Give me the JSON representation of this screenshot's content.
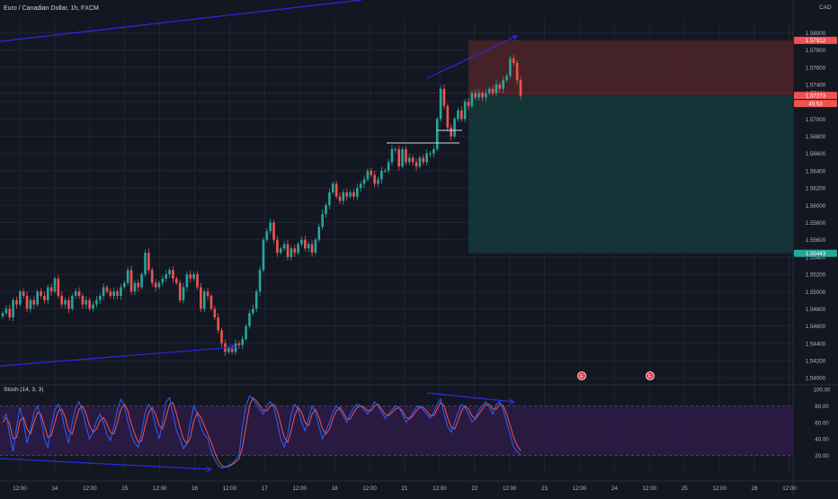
{
  "title": "Euro / Canadian Dollar, 1h, FXCM",
  "currency": "CAD",
  "colors": {
    "background": "#131722",
    "grid": "#1f2433",
    "bull": "#26a69a",
    "bear": "#ef5350",
    "trendline": "#2a2ae6",
    "level_line": "#d1d4dc",
    "stop_zone": "#4a2328",
    "target_zone": "#15363a",
    "stoch_band": "#2a1a45",
    "stoch_k": "#2962ff",
    "stoch_d": "#ef5350",
    "axis_text": "#b2b5be"
  },
  "price_axis": {
    "labels": [
      "1.58000",
      "1.57800",
      "1.57600",
      "1.57400",
      "1.57200",
      "1.57000",
      "1.56800",
      "1.56600",
      "1.56400",
      "1.56200",
      "1.56000",
      "1.55800",
      "1.55600",
      "1.55400",
      "1.55200",
      "1.55000",
      "1.54800",
      "1.54600",
      "1.54400",
      "1.54200",
      "1.54000"
    ]
  },
  "price_badges": {
    "stop": "1.57912",
    "last": "1.57301",
    "current": "1.57273",
    "countdown": "45:53",
    "target": "1.55443"
  },
  "stoch": {
    "label": "Stoch (14, 3, 3)",
    "axis_labels": [
      "100.00",
      "80.00",
      "60.00",
      "40.00",
      "20.00"
    ],
    "upper_band": 80,
    "lower_band": 20
  },
  "time_axis": {
    "labels": [
      "12:00",
      "14",
      "12:00",
      "15",
      "12:00",
      "16",
      "12:00",
      "17",
      "12:00",
      "18",
      "12:00",
      "21",
      "12:00",
      "22",
      "12:00",
      "23",
      "12:00",
      "24",
      "12:00",
      "25",
      "12:00",
      "28",
      "12:00"
    ]
  },
  "events": {
    "icon_label": "E"
  },
  "chart_data": {
    "type": "candlestick",
    "title": "Euro / Canadian Dollar, 1h, FXCM",
    "ylim": [
      1.5395,
      1.5815
    ],
    "y_unit": "CAD",
    "grid": true,
    "x_ticks": [
      "12:00",
      "14",
      "12:00",
      "15",
      "12:00",
      "16",
      "12:00",
      "17",
      "12:00",
      "18",
      "12:00",
      "21",
      "12:00",
      "22",
      "12:00",
      "23",
      "12:00",
      "24",
      "12:00",
      "25",
      "12:00",
      "28",
      "12:00"
    ],
    "close_series": [
      1.5475,
      1.548,
      1.547,
      1.549,
      1.5485,
      1.55,
      1.5495,
      1.548,
      1.549,
      1.5485,
      1.55,
      1.5495,
      1.549,
      1.5505,
      1.55,
      1.5515,
      1.5495,
      1.5485,
      1.549,
      1.548,
      1.5495,
      1.55,
      1.5495,
      1.5485,
      1.549,
      1.548,
      1.5485,
      1.549,
      1.5495,
      1.5505,
      1.55,
      1.5495,
      1.55,
      1.5495,
      1.5505,
      1.551,
      1.5525,
      1.55,
      1.551,
      1.5505,
      1.552,
      1.5545,
      1.5525,
      1.551,
      1.5505,
      1.551,
      1.5515,
      1.552,
      1.5525,
      1.5515,
      1.551,
      1.549,
      1.5505,
      1.552,
      1.5515,
      1.552,
      1.5505,
      1.548,
      1.55,
      1.5495,
      1.548,
      1.547,
      1.5455,
      1.544,
      1.543,
      1.5435,
      1.543,
      1.544,
      1.5438,
      1.5445,
      1.546,
      1.5475,
      1.548,
      1.55,
      1.5525,
      1.556,
      1.557,
      1.558,
      1.556,
      1.5545,
      1.555,
      1.5555,
      1.554,
      1.555,
      1.5545,
      1.5555,
      1.556,
      1.555,
      1.5555,
      1.5545,
      1.556,
      1.5575,
      1.559,
      1.56,
      1.5615,
      1.5625,
      1.561,
      1.5605,
      1.5615,
      1.561,
      1.5615,
      1.561,
      1.562,
      1.5625,
      1.563,
      1.564,
      1.5635,
      1.5625,
      1.563,
      1.564,
      1.564,
      1.565,
      1.5665,
      1.5665,
      1.5645,
      1.5665,
      1.565,
      1.5655,
      1.565,
      1.5645,
      1.5655,
      1.565,
      1.566,
      1.566,
      1.5665,
      1.57,
      1.5735,
      1.5715,
      1.569,
      1.568,
      1.57,
      1.571,
      1.57,
      1.572,
      1.5715,
      1.573,
      1.5725,
      1.573,
      1.5725,
      1.573,
      1.5735,
      1.573,
      1.574,
      1.5735,
      1.5745,
      1.575,
      1.577,
      1.5765,
      1.5745,
      1.5727
    ],
    "levels": [
      {
        "name": "stop",
        "value": 1.57912
      },
      {
        "name": "last",
        "value": 1.57301
      },
      {
        "name": "current",
        "value": 1.57273
      },
      {
        "name": "target",
        "value": 1.55443
      }
    ],
    "stoch_k": [
      65,
      70,
      45,
      25,
      55,
      78,
      60,
      35,
      50,
      72,
      80,
      65,
      40,
      30,
      55,
      75,
      82,
      70,
      50,
      35,
      60,
      78,
      85,
      72,
      55,
      40,
      48,
      62,
      70,
      60,
      45,
      38,
      55,
      75,
      88,
      80,
      60,
      45,
      35,
      30,
      48,
      72,
      82,
      74,
      55,
      40,
      60,
      85,
      90,
      70,
      50,
      40,
      28,
      35,
      60,
      80,
      70,
      55,
      45,
      40,
      25,
      15,
      8,
      5,
      6,
      8,
      10,
      15,
      20,
      55,
      80,
      92,
      88,
      82,
      75,
      70,
      80,
      85,
      78,
      60,
      40,
      30,
      45,
      70,
      82,
      76,
      60,
      50,
      65,
      80,
      72,
      55,
      40,
      50,
      60,
      72,
      80,
      75,
      68,
      60,
      70,
      78,
      82,
      80,
      75,
      70,
      78,
      85,
      80,
      72,
      65,
      70,
      75,
      80,
      78,
      70,
      60,
      65,
      72,
      78,
      80,
      75,
      70,
      65,
      72,
      82,
      88,
      70,
      55,
      48,
      60,
      72,
      82,
      78,
      70,
      60,
      65,
      75,
      80,
      85,
      78,
      70,
      82,
      85,
      75,
      60,
      45,
      30,
      25,
      20
    ],
    "stoch_d": [
      60,
      66,
      58,
      40,
      42,
      62,
      66,
      52,
      46,
      60,
      72,
      70,
      56,
      42,
      44,
      60,
      74,
      76,
      66,
      50,
      46,
      62,
      76,
      80,
      70,
      56,
      48,
      52,
      62,
      66,
      58,
      48,
      46,
      60,
      76,
      82,
      74,
      58,
      46,
      36,
      38,
      56,
      72,
      78,
      70,
      56,
      52,
      66,
      82,
      84,
      70,
      54,
      40,
      34,
      42,
      62,
      72,
      66,
      56,
      46,
      36,
      24,
      14,
      8,
      6,
      7,
      9,
      12,
      16,
      30,
      55,
      80,
      90,
      86,
      80,
      74,
      74,
      80,
      82,
      74,
      58,
      42,
      36,
      50,
      68,
      78,
      72,
      60,
      56,
      70,
      76,
      66,
      52,
      46,
      52,
      64,
      74,
      78,
      72,
      64,
      64,
      72,
      78,
      80,
      78,
      74,
      74,
      80,
      82,
      76,
      70,
      68,
      72,
      76,
      78,
      74,
      66,
      64,
      68,
      74,
      78,
      78,
      74,
      68,
      68,
      76,
      84,
      80,
      66,
      54,
      52,
      62,
      74,
      80,
      76,
      68,
      64,
      70,
      76,
      82,
      82,
      76,
      76,
      82,
      80,
      70,
      56,
      42,
      32,
      26
    ]
  }
}
